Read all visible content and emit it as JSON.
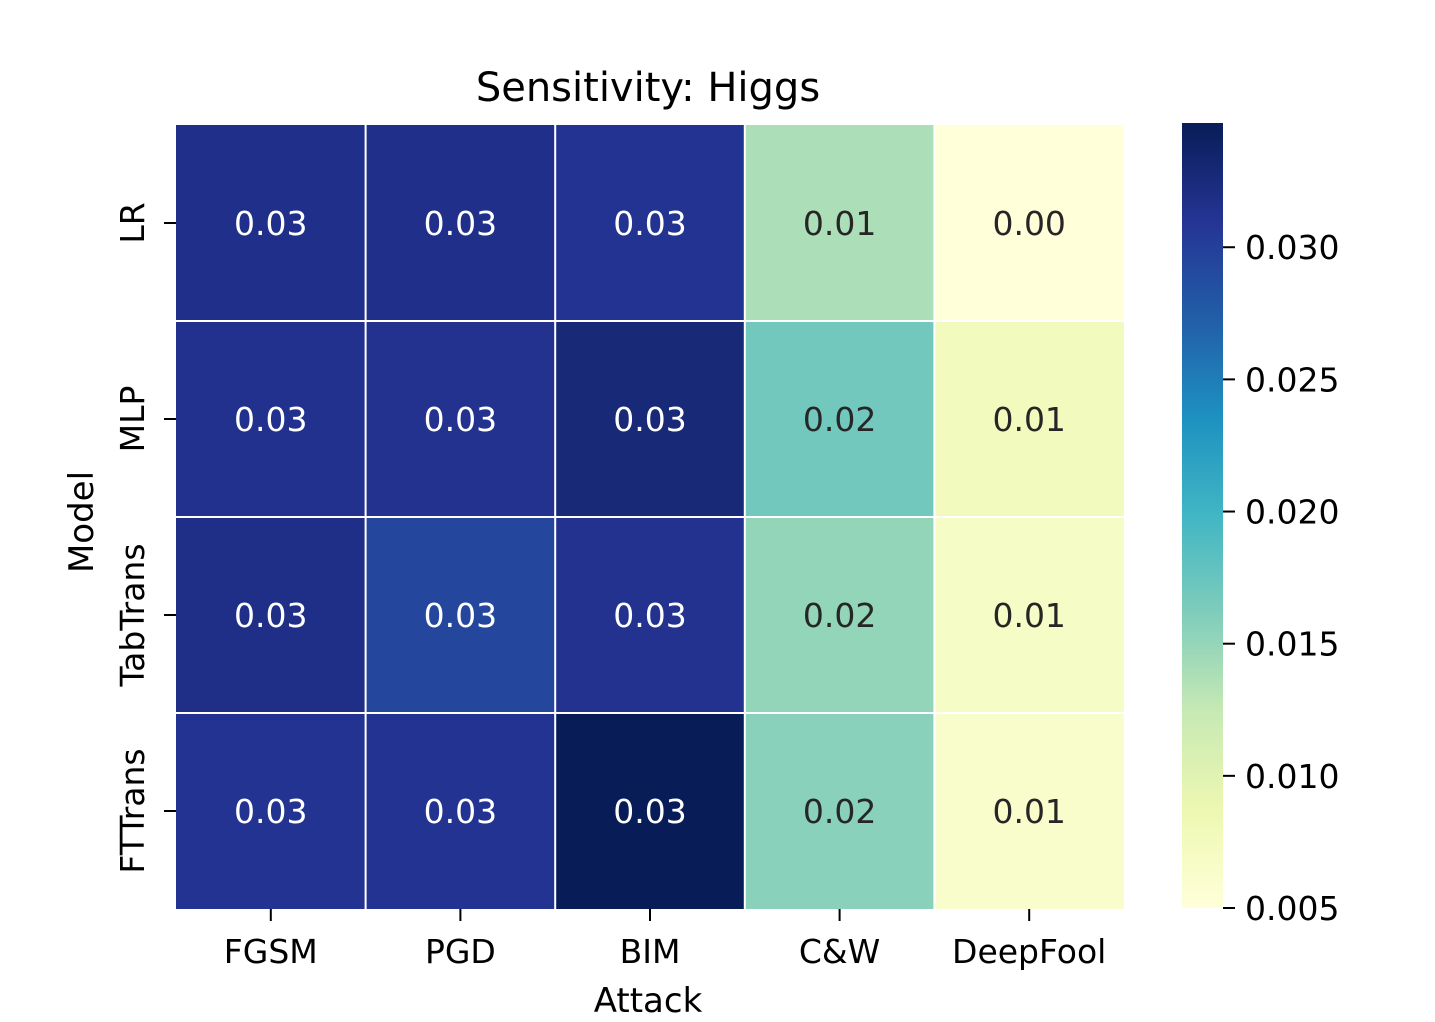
{
  "chart_data": {
    "type": "heatmap",
    "title": "Sensitivity: Higgs",
    "xlabel": "Attack",
    "ylabel": "Model",
    "x_categories": [
      "FGSM",
      "PGD",
      "BIM",
      "C&W",
      "DeepFool"
    ],
    "y_categories": [
      "LR",
      "MLP",
      "TabTrans",
      "FTTrans"
    ],
    "values": [
      [
        0.0316,
        0.0316,
        0.0312,
        0.0138,
        0.005
      ],
      [
        0.0314,
        0.0313,
        0.0328,
        0.0169,
        0.0075
      ],
      [
        0.0318,
        0.0293,
        0.0313,
        0.0151,
        0.0068
      ],
      [
        0.0312,
        0.0312,
        0.0347,
        0.0156,
        0.0062
      ]
    ],
    "cell_labels": [
      [
        "0.03",
        "0.03",
        "0.03",
        "0.01",
        "0.00"
      ],
      [
        "0.03",
        "0.03",
        "0.03",
        "0.02",
        "0.01"
      ],
      [
        "0.03",
        "0.03",
        "0.03",
        "0.02",
        "0.01"
      ],
      [
        "0.03",
        "0.03",
        "0.03",
        "0.02",
        "0.01"
      ]
    ],
    "colormap": "YlGnBu",
    "colorbar": {
      "range": [
        0.005,
        0.0347
      ],
      "ticks": [
        0.005,
        0.01,
        0.015,
        0.02,
        0.025,
        0.03
      ],
      "tick_labels": [
        "0.005",
        "0.010",
        "0.015",
        "0.020",
        "0.025",
        "0.030"
      ]
    },
    "colormap_stops": [
      "#ffffd9",
      "#edf8b1",
      "#c7e9b4",
      "#7fcdbb",
      "#41b6c4",
      "#1d91c0",
      "#225ea8",
      "#253494",
      "#081d58"
    ],
    "light_text_color": "#ffffff",
    "dark_text_color": "#262626",
    "gridline_color": "#ffffff"
  }
}
